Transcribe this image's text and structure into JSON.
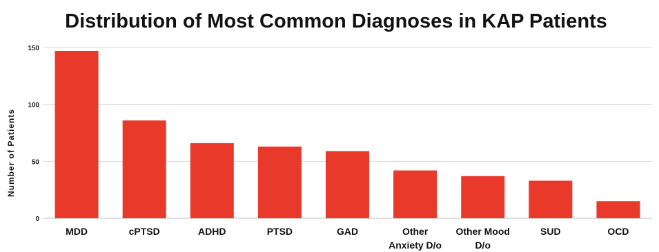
{
  "chart_data": {
    "type": "bar",
    "title": "Distribution of Most Common Diagnoses in KAP Patients",
    "xlabel": "",
    "ylabel": "Number of Patients",
    "ylim": [
      0,
      150
    ],
    "yticks": [
      0,
      50,
      100,
      150
    ],
    "grid": true,
    "bar_color": "#e8392b",
    "categories": [
      "MDD",
      "cPTSD",
      "ADHD",
      "PTSD",
      "GAD",
      "Other Anxiety D/o",
      "Other Mood D/o",
      "SUD",
      "OCD"
    ],
    "category_lines": [
      [
        "MDD"
      ],
      [
        "cPTSD"
      ],
      [
        "ADHD"
      ],
      [
        "PTSD"
      ],
      [
        "GAD"
      ],
      [
        "Other",
        "Anxiety D/o"
      ],
      [
        "Other Mood",
        "D/o"
      ],
      [
        "SUD"
      ],
      [
        "OCD"
      ]
    ],
    "values": [
      147,
      86,
      66,
      63,
      59,
      42,
      37,
      33,
      15
    ]
  }
}
